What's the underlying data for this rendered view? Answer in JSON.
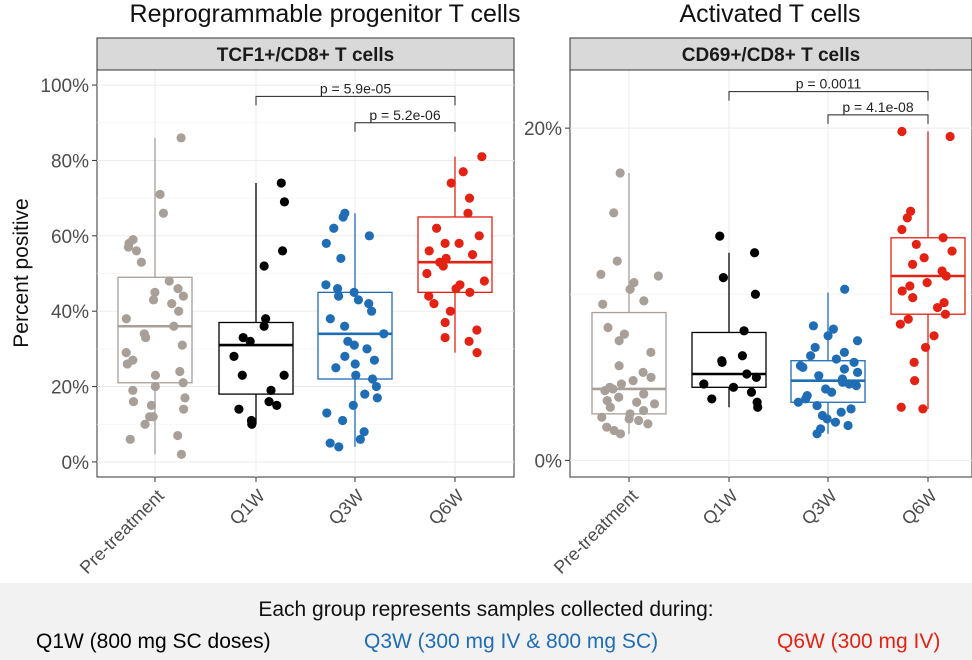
{
  "titles": {
    "left": "Reprogrammable progenitor T cells",
    "right": "Activated T cells"
  },
  "footnote": "Each group represents samples collected during:",
  "legend": [
    {
      "label": "Q1W (800 mg SC doses)",
      "color": "#000000"
    },
    {
      "label": "Q3W (300 mg IV & 800 mg SC)",
      "color": "#1f6db5"
    },
    {
      "label": "Q6W (300 mg IV)",
      "color": "#e32214"
    }
  ],
  "chart_data": [
    {
      "type": "box",
      "strip_label": "TCF1+/CD8+ T cells",
      "ylabel": "Percent positive",
      "ylim": [
        -4,
        104
      ],
      "yticks": [
        0,
        20,
        40,
        60,
        80,
        100
      ],
      "ytick_labels": [
        "0%",
        "20%",
        "40%",
        "60%",
        "80%",
        "100%"
      ],
      "categories": [
        "Pre-treatment",
        "Q1W",
        "Q3W",
        "Q6W"
      ],
      "colors": [
        "#a89f99",
        "#000000",
        "#1f6db5",
        "#e32214"
      ],
      "boxes": [
        {
          "q1": 21,
          "median": 36,
          "q3": 49,
          "whisker_low": 2,
          "whisker_high": 86
        },
        {
          "q1": 18,
          "median": 31,
          "q3": 37,
          "whisker_low": 10,
          "whisker_high": 74
        },
        {
          "q1": 22,
          "median": 34,
          "q3": 45,
          "whisker_low": 4,
          "whisker_high": 66
        },
        {
          "q1": 45,
          "median": 53,
          "q3": 65,
          "whisker_low": 29,
          "whisker_high": 81
        }
      ],
      "points": [
        [
          86,
          71,
          66,
          59,
          58,
          57,
          53,
          48,
          46,
          45,
          44,
          43,
          42,
          40,
          38,
          36,
          34,
          33,
          31,
          29,
          27,
          26,
          23,
          21,
          20,
          19,
          17,
          16,
          15,
          12,
          12,
          7,
          6,
          2,
          24,
          14,
          10,
          56
        ],
        [
          74,
          69,
          56,
          52,
          38,
          36,
          33,
          32,
          28,
          23,
          23,
          19,
          16,
          15,
          14,
          11,
          10
        ],
        [
          66,
          65,
          62,
          60,
          58,
          54,
          47,
          46,
          45,
          44,
          43,
          42,
          40,
          38,
          36,
          34,
          32,
          31,
          30,
          28,
          27,
          26,
          25,
          23,
          22,
          20,
          18,
          17,
          15,
          13,
          11,
          8,
          6,
          5,
          4
        ],
        [
          81,
          77,
          74,
          70,
          66,
          62,
          60,
          58,
          56,
          55,
          54,
          53,
          52,
          50,
          48,
          47,
          46,
          45,
          44,
          42,
          40,
          37,
          35,
          33,
          32,
          29,
          58
        ]
      ],
      "comparisons": [
        {
          "from": "Q1W",
          "to": "Q6W",
          "label": "p = 5.9e-05",
          "y": 97
        },
        {
          "from": "Q3W",
          "to": "Q6W",
          "label": "p = 5.2e-06",
          "y": 90
        }
      ]
    },
    {
      "type": "box",
      "strip_label": "CD69+/CD8+ T cells",
      "ylim": [
        -1,
        23.5
      ],
      "yticks": [
        0,
        20
      ],
      "ytick_labels": [
        "0%",
        "20%"
      ],
      "categories": [
        "Pre-treatment",
        "Q1W",
        "Q3W",
        "Q6W"
      ],
      "colors": [
        "#a89f99",
        "#000000",
        "#1f6db5",
        "#e32214"
      ],
      "boxes": [
        {
          "q1": 2.8,
          "median": 4.3,
          "q3": 8.9,
          "whisker_low": 1.6,
          "whisker_high": 17.3
        },
        {
          "q1": 4.4,
          "median": 5.2,
          "q3": 7.7,
          "whisker_low": 3.2,
          "whisker_high": 12.5
        },
        {
          "q1": 3.5,
          "median": 4.8,
          "q3": 6.0,
          "whisker_low": 1.6,
          "whisker_high": 10.1
        },
        {
          "q1": 8.8,
          "median": 11.1,
          "q3": 13.4,
          "whisker_low": 3.1,
          "whisker_high": 19.8
        }
      ],
      "points": [
        [
          17.3,
          14.9,
          12.0,
          11.2,
          11.1,
          10.7,
          10.3,
          9.6,
          9.4,
          8.0,
          7.6,
          7.2,
          6.5,
          5.7,
          5.3,
          5.0,
          4.8,
          4.6,
          4.4,
          4.2,
          4.0,
          3.8,
          3.6,
          3.4,
          3.2,
          3.0,
          2.8,
          2.6,
          2.4,
          2.2,
          2.0,
          1.8,
          1.6,
          3.5,
          4.3,
          2.5
        ],
        [
          13.5,
          12.5,
          11.0,
          10.0,
          7.8,
          6.3,
          6.0,
          5.9,
          5.2,
          5.0,
          4.6,
          4.4,
          4.1,
          3.7,
          3.2,
          3.5
        ],
        [
          10.3,
          8.1,
          7.9,
          7.5,
          7.2,
          6.8,
          6.5,
          6.3,
          6.1,
          5.9,
          5.7,
          5.5,
          5.3,
          5.1,
          4.9,
          4.7,
          4.5,
          4.3,
          4.1,
          3.9,
          3.7,
          3.5,
          3.3,
          3.1,
          2.9,
          2.7,
          2.5,
          2.3,
          2.1,
          1.9,
          1.6,
          4.6,
          5.6
        ],
        [
          19.8,
          19.5,
          15.0,
          14.6,
          13.9,
          13.4,
          13.0,
          12.6,
          12.2,
          11.8,
          11.4,
          11.1,
          10.7,
          10.2,
          9.8,
          9.5,
          9.2,
          8.8,
          8.5,
          8.2,
          7.5,
          6.8,
          5.9,
          4.8,
          3.2,
          3.1,
          10.5
        ]
      ],
      "comparisons": [
        {
          "from": "Q1W",
          "to": "Q6W",
          "label": "p = 0.0011",
          "y": 22.2
        },
        {
          "from": "Q3W",
          "to": "Q6W",
          "label": "p = 4.1e-08",
          "y": 20.8
        }
      ]
    }
  ]
}
